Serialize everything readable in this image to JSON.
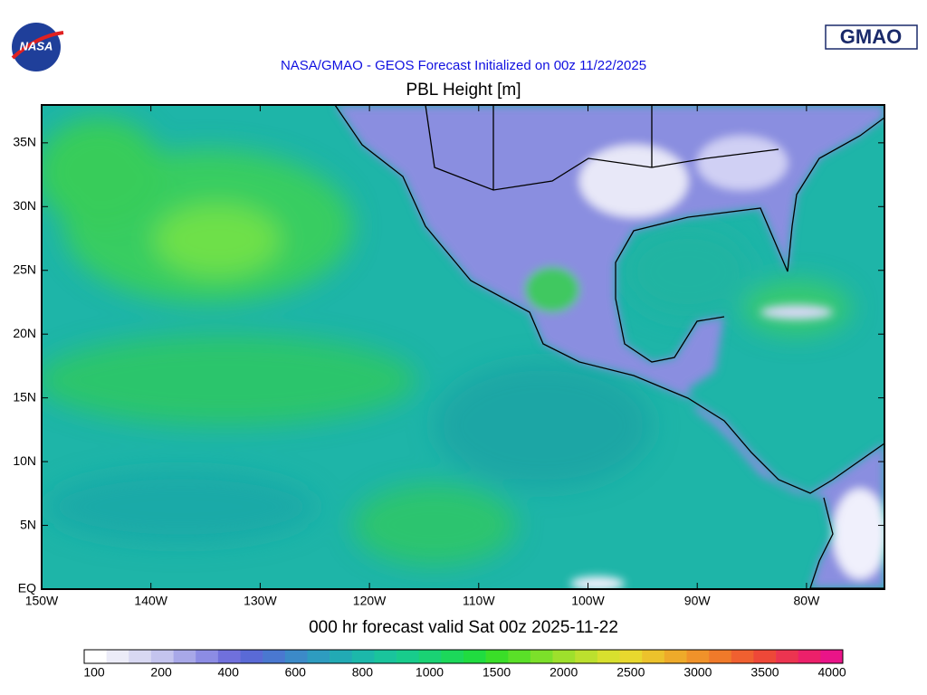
{
  "header": {
    "logo_left": "NASA",
    "logo_right": "GMAO",
    "title": "NASA/GMAO - GEOS Forecast Initialized on 00z 11/22/2025",
    "subtitle": "PBL Height [m]"
  },
  "map": {
    "lat_labels": [
      "EQ",
      "5N",
      "10N",
      "15N",
      "20N",
      "25N",
      "30N",
      "35N"
    ],
    "lon_labels": [
      "150W",
      "140W",
      "130W",
      "120W",
      "110W",
      "100W",
      "90W",
      "80W"
    ]
  },
  "caption": "000 hr forecast valid Sat 00z 2025-11-22",
  "colorbar": {
    "labels": [
      "100",
      "200",
      "400",
      "600",
      "800",
      "1000",
      "1500",
      "2000",
      "2500",
      "3000",
      "3500",
      "4000"
    ]
  }
}
